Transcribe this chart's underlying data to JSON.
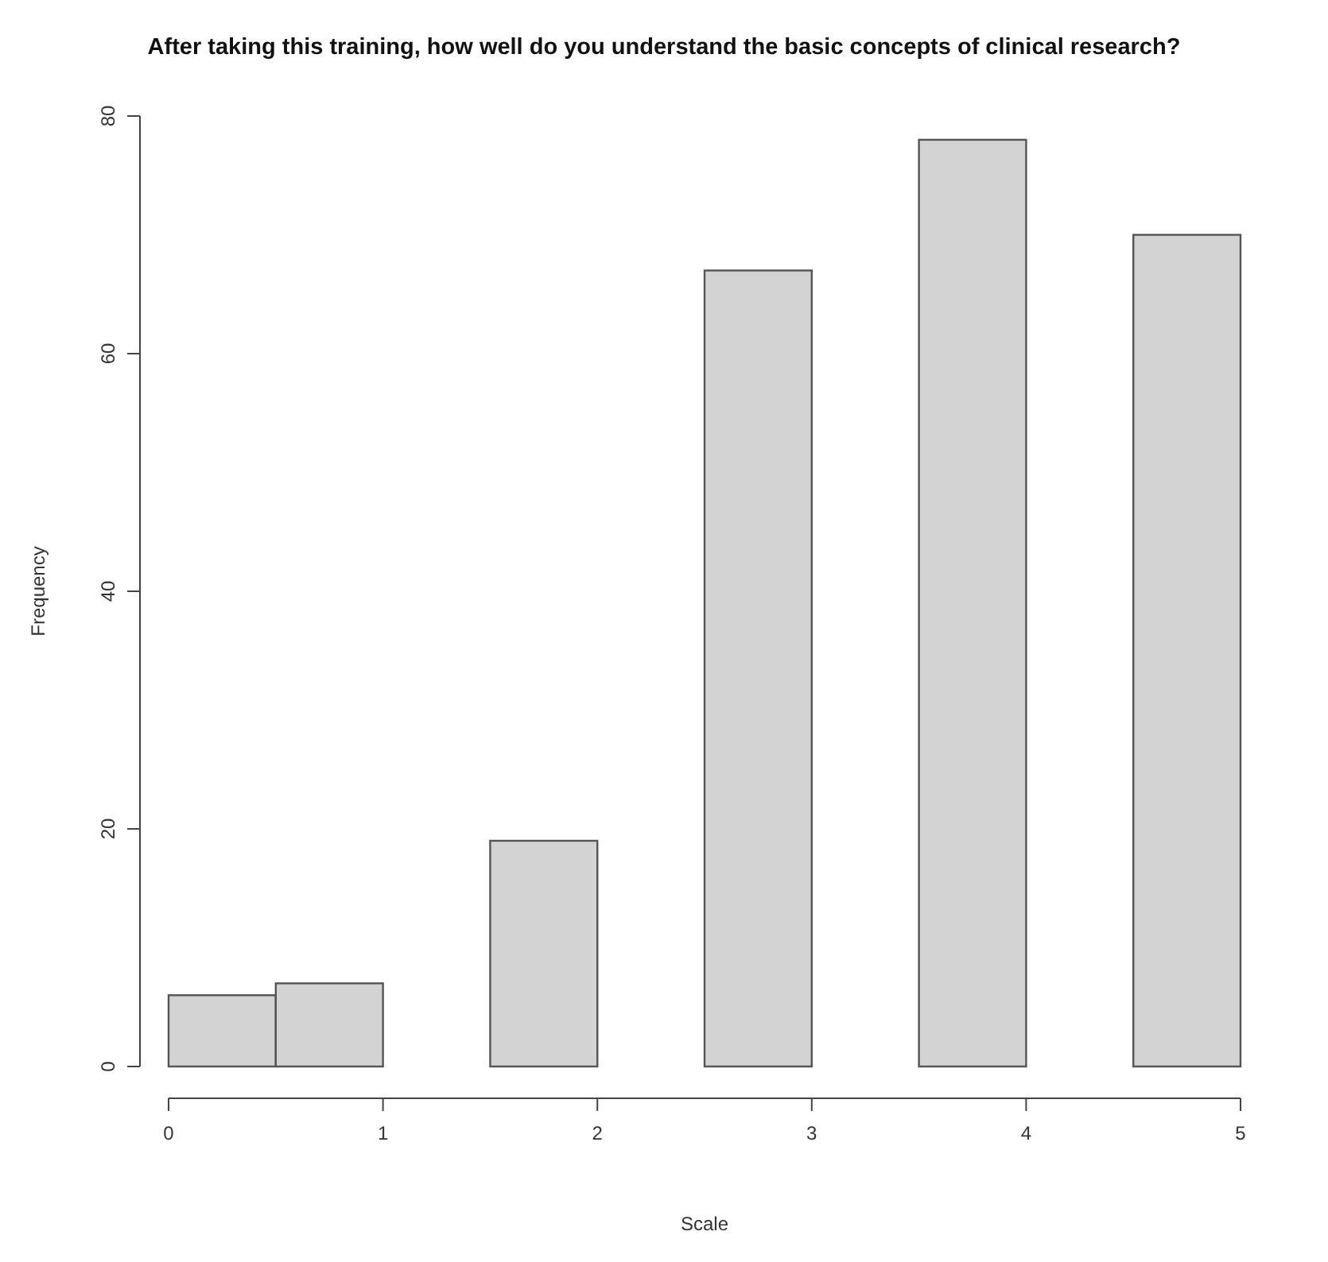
{
  "chart_data": {
    "type": "histogram",
    "title": "After taking this training, how well do you understand the basic concepts of clinical research?",
    "xlabel": "Scale",
    "ylabel": "Frequency",
    "bins": [
      0,
      0.5,
      1,
      1.5,
      2,
      2.5,
      3,
      3.5,
      4,
      4.5,
      5
    ],
    "values": [
      6,
      7,
      0,
      19,
      0,
      67,
      0,
      78,
      0,
      70
    ],
    "color": "#d3d3d3",
    "xlim": [
      0,
      5
    ],
    "xticks": [
      0,
      1,
      2,
      3,
      4,
      5
    ],
    "ylim": [
      0,
      80
    ],
    "yticks": [
      0,
      20,
      40,
      60,
      80
    ],
    "grid": false
  }
}
